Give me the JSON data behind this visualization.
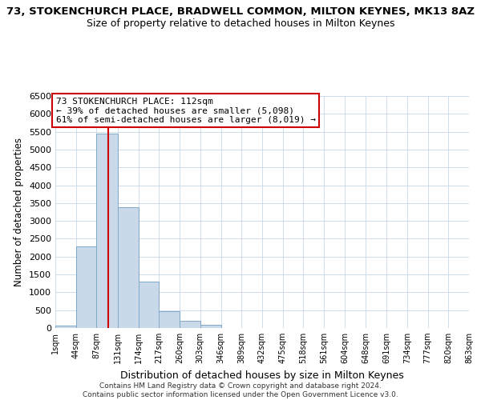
{
  "title": "73, STOKENCHURCH PLACE, BRADWELL COMMON, MILTON KEYNES, MK13 8AZ",
  "subtitle": "Size of property relative to detached houses in Milton Keynes",
  "xlabel": "Distribution of detached houses by size in Milton Keynes",
  "ylabel": "Number of detached properties",
  "bin_edges": [
    1,
    44,
    87,
    131,
    174,
    217,
    260,
    303,
    346,
    389,
    432,
    475,
    518,
    561,
    604,
    648,
    691,
    734,
    777,
    820,
    863
  ],
  "bin_heights": [
    75,
    2280,
    5450,
    3380,
    1310,
    480,
    195,
    100,
    0,
    0,
    0,
    0,
    0,
    0,
    0,
    0,
    0,
    0,
    0,
    0
  ],
  "bar_color": "#c9d9ea",
  "bar_edge_color": "#7fa8c9",
  "vline_color": "#cc0000",
  "vline_x": 112,
  "ylim": [
    0,
    6500
  ],
  "yticks": [
    0,
    500,
    1000,
    1500,
    2000,
    2500,
    3000,
    3500,
    4000,
    4500,
    5000,
    5500,
    6000,
    6500
  ],
  "annotation_title": "73 STOKENCHURCH PLACE: 112sqm",
  "annotation_line1": "← 39% of detached houses are smaller (5,098)",
  "annotation_line2": "61% of semi-detached houses are larger (8,019) →",
  "annotation_box_color": "#ffffff",
  "annotation_box_edge": "#cc0000",
  "footer_line1": "Contains HM Land Registry data © Crown copyright and database right 2024.",
  "footer_line2": "Contains public sector information licensed under the Open Government Licence v3.0.",
  "background_color": "#ffffff",
  "grid_color": "#c8d8e8",
  "title_fontsize": 9.5,
  "subtitle_fontsize": 9
}
